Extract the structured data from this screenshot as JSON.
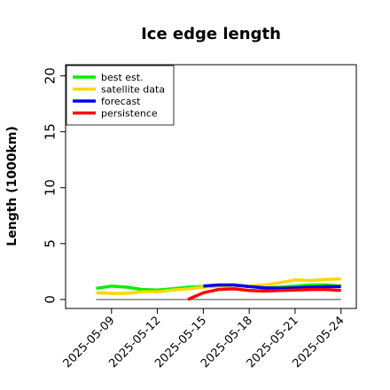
{
  "chart_data": {
    "type": "line",
    "title": "Ice edge length",
    "xlabel": "",
    "ylabel": "Length (1000km)",
    "ylim": [
      -0.8,
      21
    ],
    "xlim": [
      "2025-05-06",
      "2025-05-25"
    ],
    "yticks": [
      0,
      5,
      10,
      15,
      20
    ],
    "xticks": [
      {
        "label": "2025-05-09",
        "date": "2025-05-09",
        "color": "#000000"
      },
      {
        "label": "2025-05-12",
        "date": "2025-05-12",
        "color": "#000000"
      },
      {
        "label": "2025-05-15",
        "date": "2025-05-15",
        "color": "#228B22"
      },
      {
        "label": "2025-05-18",
        "date": "2025-05-18",
        "color": "#000000"
      },
      {
        "label": "2025-05-21",
        "date": "2025-05-21",
        "color": "#000000"
      },
      {
        "label": "2025-05-24",
        "date": "2025-05-24",
        "color": "#000000"
      }
    ],
    "grid": false,
    "legend_position": "top-left",
    "reference_line": {
      "y": 0,
      "from": "2025-05-08",
      "to": "2025-05-24",
      "color": "#808080"
    },
    "series": [
      {
        "name": "best est.",
        "color": "#00ee00",
        "points": [
          [
            "2025-05-08",
            1.0
          ],
          [
            "2025-05-09",
            1.2
          ],
          [
            "2025-05-10",
            1.1
          ],
          [
            "2025-05-11",
            0.9
          ],
          [
            "2025-05-12",
            0.85
          ],
          [
            "2025-05-13",
            0.95
          ],
          [
            "2025-05-14",
            1.1
          ],
          [
            "2025-05-15",
            1.15
          ],
          [
            "2025-05-16",
            1.2
          ],
          [
            "2025-05-17",
            1.25
          ],
          [
            "2025-05-18",
            1.2
          ],
          [
            "2025-05-19",
            1.05
          ],
          [
            "2025-05-20",
            1.1
          ],
          [
            "2025-05-21",
            1.2
          ],
          [
            "2025-05-22",
            1.3
          ],
          [
            "2025-05-23",
            1.3
          ],
          [
            "2025-05-24",
            1.2
          ]
        ]
      },
      {
        "name": "satellite data",
        "color": "#ffd700",
        "points": [
          [
            "2025-05-08",
            0.6
          ],
          [
            "2025-05-09",
            0.55
          ],
          [
            "2025-05-10",
            0.55
          ],
          [
            "2025-05-11",
            0.7
          ],
          [
            "2025-05-12",
            0.7
          ],
          [
            "2025-05-13",
            0.85
          ],
          [
            "2025-05-14",
            0.95
          ],
          [
            "2025-05-15",
            1.1
          ],
          [
            "2025-05-16",
            1.2
          ],
          [
            "2025-05-17",
            1.2
          ],
          [
            "2025-05-18",
            1.2
          ],
          [
            "2025-05-19",
            1.3
          ],
          [
            "2025-05-20",
            1.5
          ],
          [
            "2025-05-21",
            1.75
          ],
          [
            "2025-05-22",
            1.7
          ],
          [
            "2025-05-23",
            1.8
          ],
          [
            "2025-05-24",
            1.85
          ]
        ]
      },
      {
        "name": "forecast",
        "color": "#0000ee",
        "points": [
          [
            "2025-05-15",
            1.2
          ],
          [
            "2025-05-16",
            1.3
          ],
          [
            "2025-05-17",
            1.3
          ],
          [
            "2025-05-18",
            1.15
          ],
          [
            "2025-05-19",
            1.05
          ],
          [
            "2025-05-20",
            1.0
          ],
          [
            "2025-05-21",
            1.05
          ],
          [
            "2025-05-22",
            1.1
          ],
          [
            "2025-05-23",
            1.15
          ],
          [
            "2025-05-24",
            1.15
          ]
        ]
      },
      {
        "name": "persistence",
        "color": "#ff0000",
        "points": [
          [
            "2025-05-14",
            0.0
          ],
          [
            "2025-05-15",
            0.6
          ],
          [
            "2025-05-16",
            0.9
          ],
          [
            "2025-05-17",
            0.95
          ],
          [
            "2025-05-18",
            0.8
          ],
          [
            "2025-05-19",
            0.75
          ],
          [
            "2025-05-20",
            0.8
          ],
          [
            "2025-05-21",
            0.85
          ],
          [
            "2025-05-22",
            0.9
          ],
          [
            "2025-05-23",
            0.9
          ],
          [
            "2025-05-24",
            0.8
          ]
        ]
      }
    ]
  }
}
